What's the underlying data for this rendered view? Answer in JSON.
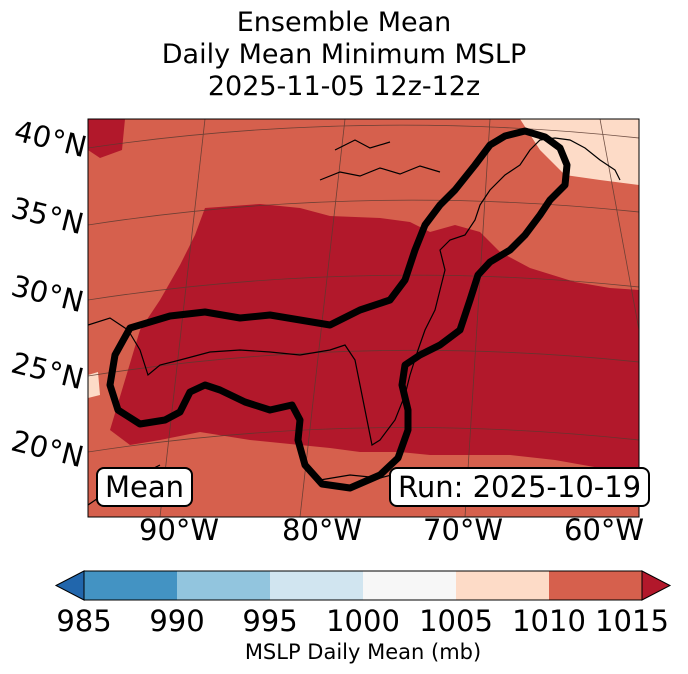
{
  "title": {
    "line1": "Ensemble Mean",
    "line2": "Daily Mean Minimum MSLP",
    "line3": "2025-11-05 12z-12z"
  },
  "map": {
    "lat_labels": [
      "40°N",
      "35°N",
      "30°N",
      "25°N",
      "20°N"
    ],
    "lon_labels": [
      "90°W",
      "80°W",
      "70°W",
      "60°W"
    ],
    "left_box": "Mean",
    "right_box": "Run: 2025-10-19",
    "colors": {
      "dark_red": "#b2182b",
      "medium_red": "#d6604d",
      "light_peach": "#fddbc7",
      "contour": "#000000"
    }
  },
  "colorbar": {
    "ticks": [
      "985",
      "990",
      "995",
      "1000",
      "1005",
      "1010",
      "1015"
    ],
    "colors": [
      "#4393c3",
      "#92c5de",
      "#d1e5f0",
      "#f7f7f7",
      "#fddbc7",
      "#d6604d"
    ],
    "under_color": "#2166ac",
    "over_color": "#b2182b",
    "label": "MSLP Daily Mean (mb)"
  }
}
